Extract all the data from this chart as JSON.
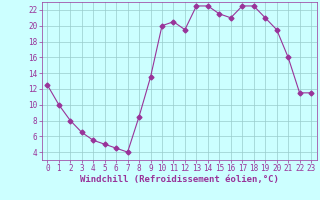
{
  "x": [
    0,
    1,
    2,
    3,
    4,
    5,
    6,
    7,
    8,
    9,
    10,
    11,
    12,
    13,
    14,
    15,
    16,
    17,
    18,
    19,
    20,
    21,
    22,
    23
  ],
  "y": [
    12.5,
    10,
    8,
    6.5,
    5.5,
    5,
    4.5,
    4,
    8.5,
    13.5,
    20,
    20.5,
    19.5,
    22.5,
    22.5,
    21.5,
    21,
    22.5,
    22.5,
    21,
    19.5,
    16,
    11.5,
    11.5
  ],
  "line_color": "#993399",
  "marker": "D",
  "markersize": 2.5,
  "linewidth": 0.8,
  "bg_color": "#ccffff",
  "grid_color": "#99cccc",
  "xlabel": "Windchill (Refroidissement éolien,°C)",
  "xlabel_fontsize": 6.5,
  "xlabel_color": "#993399",
  "tick_color": "#993399",
  "tick_labelsize": 5.5,
  "xlim": [
    -0.5,
    23.5
  ],
  "ylim": [
    3,
    23
  ],
  "yticks": [
    4,
    6,
    8,
    10,
    12,
    14,
    16,
    18,
    20,
    22
  ],
  "xticks": [
    0,
    1,
    2,
    3,
    4,
    5,
    6,
    7,
    8,
    9,
    10,
    11,
    12,
    13,
    14,
    15,
    16,
    17,
    18,
    19,
    20,
    21,
    22,
    23
  ]
}
